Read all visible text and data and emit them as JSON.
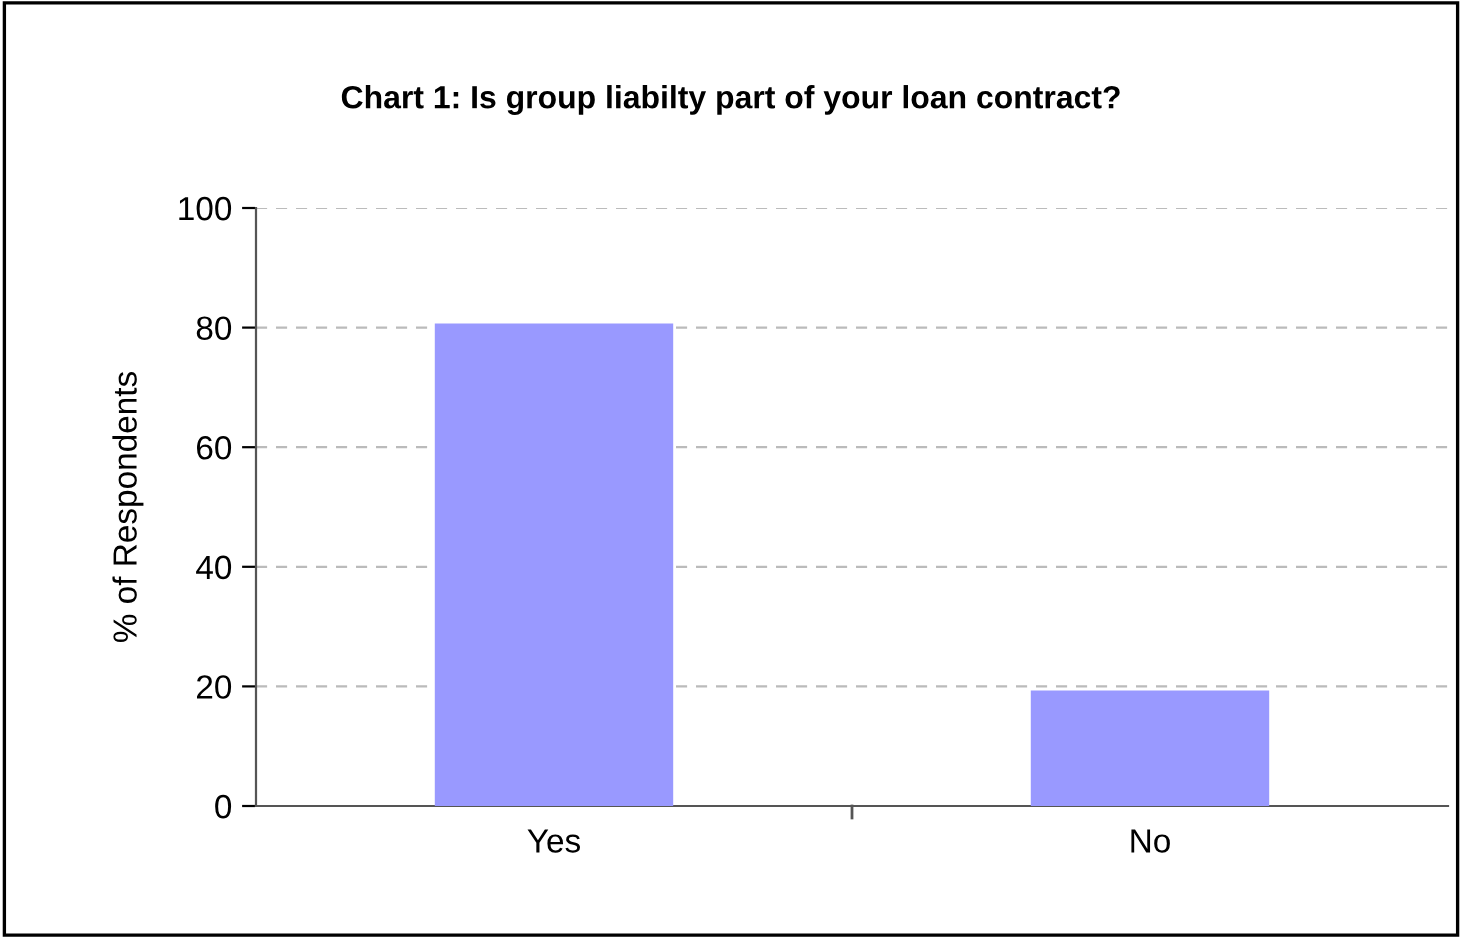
{
  "chart_data": {
    "type": "bar",
    "title": "Chart 1: Is group liabilty part of your loan contract?",
    "ylabel": "% of Respondents",
    "categories": [
      "Yes",
      "No"
    ],
    "values": [
      80.7,
      19.3
    ],
    "color": "#9999ff",
    "ylim": [
      0,
      100
    ],
    "yticks": [
      0,
      20,
      40,
      60,
      80,
      100
    ],
    "grid": "y"
  }
}
